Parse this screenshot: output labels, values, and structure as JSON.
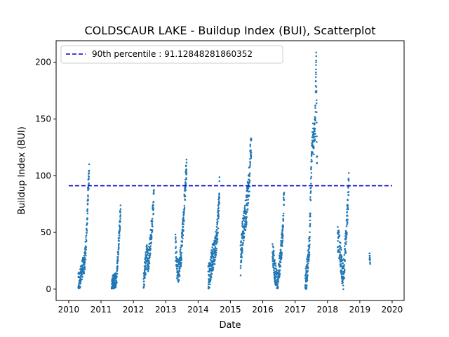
{
  "chart_data": {
    "type": "scatter",
    "title": "COLDSCAUR LAKE - Buildup Index (BUI), Scatterplot",
    "xlabel": "Date",
    "ylabel": "Buildup Index (BUI)",
    "xlim": [
      "2009-08-12",
      "2020-05-15"
    ],
    "ylim": [
      -10,
      219
    ],
    "x_ticks": [
      "2010",
      "2011",
      "2012",
      "2013",
      "2014",
      "2015",
      "2016",
      "2017",
      "2018",
      "2019",
      "2020"
    ],
    "y_ticks": [
      0,
      50,
      100,
      150,
      200
    ],
    "grid": false,
    "legend_position": "top-left",
    "point_color": "#1f77b4",
    "reference_line": {
      "label": "90th percentile : 91.12848281860352",
      "value": 91.12848281860352,
      "color": "#0000cc",
      "style": "dashed",
      "x_range": [
        "2010-01-01",
        "2020-01-01"
      ]
    },
    "seasons": [
      {
        "year": 2010,
        "start": "2010-04-20",
        "end": "2010-08-20",
        "profile": [
          [
            0,
            5
          ],
          [
            0.15,
            8
          ],
          [
            0.3,
            15
          ],
          [
            0.45,
            20
          ],
          [
            0.6,
            24
          ],
          [
            0.7,
            40
          ],
          [
            0.82,
            65
          ],
          [
            0.92,
            90
          ],
          [
            1.0,
            104
          ]
        ],
        "spread": 9
      },
      {
        "year": 2011,
        "start": "2011-05-01",
        "end": "2011-08-10",
        "profile": [
          [
            0,
            3
          ],
          [
            0.2,
            6
          ],
          [
            0.4,
            8
          ],
          [
            0.55,
            10
          ],
          [
            0.7,
            30
          ],
          [
            0.85,
            50
          ],
          [
            1.0,
            69
          ]
        ],
        "spread": 7
      },
      {
        "year": 2012,
        "start": "2012-04-25",
        "end": "2012-08-20",
        "profile": [
          [
            0,
            3
          ],
          [
            0.15,
            20
          ],
          [
            0.3,
            30
          ],
          [
            0.45,
            25
          ],
          [
            0.6,
            35
          ],
          [
            0.75,
            50
          ],
          [
            0.9,
            65
          ],
          [
            1.0,
            84
          ]
        ],
        "spread": 10
      },
      {
        "year": 2013,
        "start": "2013-04-20",
        "end": "2013-08-25",
        "profile": [
          [
            0,
            40
          ],
          [
            0.12,
            20
          ],
          [
            0.3,
            15
          ],
          [
            0.5,
            30
          ],
          [
            0.7,
            60
          ],
          [
            0.85,
            85
          ],
          [
            1.0,
            110
          ]
        ],
        "spread": 10
      },
      {
        "year": 2014,
        "start": "2014-04-25",
        "end": "2014-08-30",
        "profile": [
          [
            0,
            8
          ],
          [
            0.2,
            18
          ],
          [
            0.4,
            28
          ],
          [
            0.55,
            32
          ],
          [
            0.7,
            40
          ],
          [
            0.85,
            55
          ],
          [
            1.0,
            88
          ]
        ],
        "spread": 12
      },
      {
        "year": 2015,
        "start": "2015-04-25",
        "end": "2015-08-25",
        "profile": [
          [
            0,
            25
          ],
          [
            0.2,
            50
          ],
          [
            0.4,
            60
          ],
          [
            0.6,
            75
          ],
          [
            0.8,
            95
          ],
          [
            1.0,
            130
          ]
        ],
        "spread": 14
      },
      {
        "year": 2016,
        "start": "2016-04-20",
        "end": "2016-08-30",
        "profile": [
          [
            0,
            35
          ],
          [
            0.15,
            20
          ],
          [
            0.3,
            10
          ],
          [
            0.45,
            5
          ],
          [
            0.55,
            15
          ],
          [
            0.7,
            30
          ],
          [
            0.85,
            45
          ],
          [
            1.0,
            85
          ]
        ],
        "spread": 10
      },
      {
        "year": 2017,
        "start": "2017-04-25",
        "end": "2017-09-05",
        "profile": [
          [
            0,
            3
          ],
          [
            0.2,
            20
          ],
          [
            0.35,
            40
          ],
          [
            0.45,
            80
          ],
          [
            0.55,
            120
          ],
          [
            0.65,
            135
          ],
          [
            0.75,
            130
          ],
          [
            0.85,
            150
          ],
          [
            0.93,
            205
          ],
          [
            1.0,
            100
          ]
        ],
        "spread": 12
      },
      {
        "year": 2018,
        "start": "2018-04-25",
        "end": "2018-08-30",
        "profile": [
          [
            0,
            45
          ],
          [
            0.2,
            35
          ],
          [
            0.35,
            20
          ],
          [
            0.5,
            10
          ],
          [
            0.65,
            30
          ],
          [
            0.8,
            55
          ],
          [
            0.9,
            70
          ],
          [
            1.0,
            96
          ]
        ],
        "spread": 12
      },
      {
        "year": 2019,
        "start": "2019-04-20",
        "end": "2019-04-28",
        "profile": [
          [
            0,
            30
          ],
          [
            0.5,
            27
          ],
          [
            1.0,
            24
          ]
        ],
        "spread": 3
      }
    ]
  }
}
